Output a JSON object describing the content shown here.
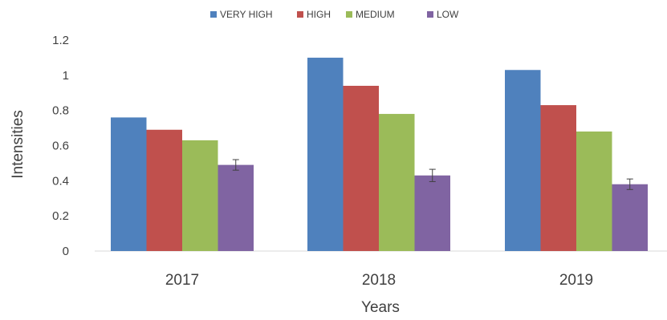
{
  "chart_data": {
    "type": "bar",
    "title": "",
    "xlabel": "Years",
    "ylabel": "Intensities",
    "categories": [
      "2017",
      "2018",
      "2019"
    ],
    "ylim": [
      0,
      1.2
    ],
    "yticks": [
      "0",
      "0.2",
      "0.4",
      "0.6",
      "0.8",
      "1",
      "1.2"
    ],
    "grid": false,
    "legend_position": "top",
    "series": [
      {
        "name": "VERY HIGH",
        "color": "#4f81bd",
        "values": [
          0.76,
          1.1,
          1.03
        ]
      },
      {
        "name": "HIGH",
        "color": "#c0504d",
        "values": [
          0.69,
          0.94,
          0.83
        ]
      },
      {
        "name": "MEDIUM",
        "color": "#9bbb59",
        "values": [
          0.63,
          0.78,
          0.68
        ]
      },
      {
        "name": "LOW",
        "color": "#8064a2",
        "values": [
          0.49,
          0.43,
          0.38
        ],
        "error": [
          0.03,
          0.035,
          0.03
        ]
      }
    ]
  }
}
